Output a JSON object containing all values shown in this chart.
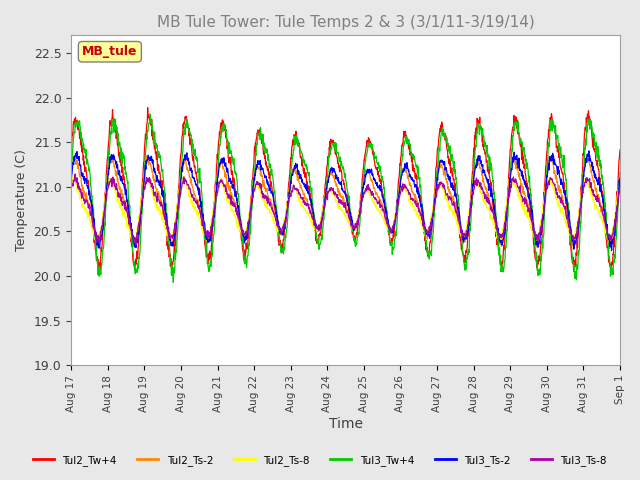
{
  "title": "MB Tule Tower: Tule Temps 2 & 3 (3/1/11-3/19/14)",
  "xlabel": "Time",
  "ylabel": "Temperature (C)",
  "ylim": [
    19.0,
    22.7
  ],
  "yticks": [
    19.0,
    19.5,
    20.0,
    20.5,
    21.0,
    21.5,
    22.0,
    22.5
  ],
  "xlim": [
    0,
    15
  ],
  "xtick_labels": [
    "Aug 17",
    "Aug 18",
    "Aug 19",
    "Aug 20",
    "Aug 21",
    "Aug 22",
    "Aug 23",
    "Aug 24",
    "Aug 25",
    "Aug 26",
    "Aug 27",
    "Aug 28",
    "Aug 29",
    "Aug 30",
    "Aug 31",
    "Sep 1"
  ],
  "legend_label": "MB_tule",
  "series": [
    {
      "name": "Tul2_Tw+4",
      "color": "#ff0000"
    },
    {
      "name": "Tul2_Ts-2",
      "color": "#ff8800"
    },
    {
      "name": "Tul2_Ts-8",
      "color": "#ffff00"
    },
    {
      "name": "Tul3_Tw+4",
      "color": "#00cc00"
    },
    {
      "name": "Tul3_Ts-2",
      "color": "#0000ff"
    },
    {
      "name": "Tul3_Ts-8",
      "color": "#aa00aa"
    }
  ],
  "bg_color": "#e8e8e8",
  "plot_bg_color": "#ffffff",
  "title_color": "#808080",
  "grid_color": "#ffffff"
}
